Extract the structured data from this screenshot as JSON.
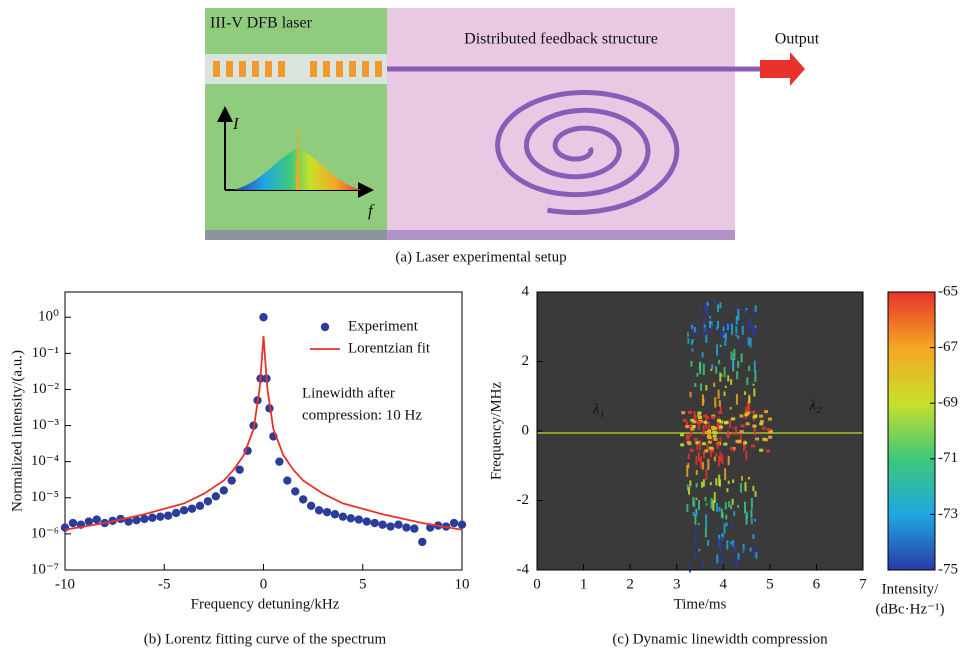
{
  "figure": {
    "panel_a": {
      "laser_label": "III-V DFB laser",
      "structure_label": "Distributed feedback structure",
      "output_label": "Output",
      "inset_y_label": "I",
      "inset_x_label": "f",
      "caption": "(a) Laser experimental setup"
    }
  },
  "chart_data": [
    {
      "type": "scatter",
      "caption": "(b) Lorentz fitting curve of the spectrum",
      "xlabel": "Frequency detuning/kHz",
      "ylabel": "Normalized intensity/(a.u.)",
      "xlim": [
        -10,
        10
      ],
      "xticks": [
        -10,
        -5,
        0,
        5,
        10
      ],
      "ylim": [
        1e-07,
        5
      ],
      "log_y": true,
      "yticks": [
        {
          "value": 1e-07,
          "label": "10⁻⁷"
        },
        {
          "value": 1e-06,
          "label": "10⁻⁶"
        },
        {
          "value": 1e-05,
          "label": "10⁻⁵"
        },
        {
          "value": 0.0001,
          "label": "10⁻⁴"
        },
        {
          "value": 0.001,
          "label": "10⁻³"
        },
        {
          "value": 0.01,
          "label": "10⁻²"
        },
        {
          "value": 0.1,
          "label": "10⁻¹"
        },
        {
          "value": 1,
          "label": "10⁰"
        }
      ],
      "legend": "upper right",
      "annotations": [
        "Linewidth after",
        "compression: 10 Hz"
      ],
      "series": [
        {
          "name": "Experiment",
          "type": "scatter",
          "color": "#2b3d9b",
          "x": [
            -10,
            -9.6,
            -9.2,
            -8.8,
            -8.4,
            -8,
            -7.6,
            -7.2,
            -6.8,
            -6.4,
            -6,
            -5.6,
            -5.2,
            -4.8,
            -4.4,
            -4,
            -3.6,
            -3.2,
            -2.8,
            -2.4,
            -2,
            -1.6,
            -1.2,
            -0.8,
            -0.5,
            -0.3,
            -0.15,
            0,
            0.15,
            0.3,
            0.5,
            0.8,
            1.2,
            1.6,
            2,
            2.4,
            2.8,
            3.2,
            3.6,
            4,
            4.4,
            4.8,
            5.2,
            5.6,
            6,
            6.4,
            6.8,
            7.2,
            7.6,
            8,
            8.4,
            8.8,
            9.2,
            9.6,
            10
          ],
          "values": [
            1.5e-06,
            2e-06,
            1.8e-06,
            2.2e-06,
            2.5e-06,
            2e-06,
            2.3e-06,
            2.6e-06,
            2.2e-06,
            2.4e-06,
            2.6e-06,
            2.8e-06,
            3e-06,
            3.2e-06,
            3.8e-06,
            4.5e-06,
            5e-06,
            6e-06,
            8e-06,
            1.1e-05,
            1.6e-05,
            3e-05,
            6e-05,
            0.0002,
            0.001,
            0.005,
            0.02,
            1,
            0.02,
            0.003,
            0.0005,
            0.0001,
            3e-05,
            1.5e-05,
            9e-06,
            6e-06,
            4.5e-06,
            4e-06,
            3.5e-06,
            3e-06,
            2.7e-06,
            2.5e-06,
            2.2e-06,
            2e-06,
            1.8e-06,
            1.6e-06,
            1.8e-06,
            1.5e-06,
            1.4e-06,
            6e-07,
            1.5e-06,
            1.7e-06,
            1.6e-06,
            2e-06,
            1.8e-06
          ]
        },
        {
          "name": "Lorentzian fit",
          "type": "line",
          "color": "#e8332c",
          "x": [
            -10,
            -8,
            -6,
            -4,
            -3,
            -2,
            -1.5,
            -1,
            -0.5,
            -0.2,
            -0.1,
            0,
            0.1,
            0.2,
            0.5,
            1,
            1.5,
            2,
            3,
            4,
            6,
            8,
            10
          ],
          "values": [
            1.3e-06,
            2e-06,
            3.5e-06,
            7e-06,
            1.3e-05,
            3e-05,
            6e-05,
            0.00015,
            0.0008,
            0.01,
            0.05,
            0.3,
            0.05,
            0.01,
            0.0008,
            0.00015,
            6e-05,
            3e-05,
            1.3e-05,
            7e-06,
            3.5e-06,
            2e-06,
            1.3e-06
          ]
        }
      ]
    },
    {
      "type": "heatmap",
      "caption": "(c) Dynamic linewidth compression",
      "xlabel": "Time/ms",
      "ylabel": "Frequency/MHz",
      "xlim": [
        0,
        7
      ],
      "xticks": [
        0,
        1,
        2,
        3,
        4,
        5,
        6,
        7
      ],
      "ylim": [
        -4,
        4
      ],
      "yticks": [
        -4,
        -2,
        0,
        2,
        4
      ],
      "annotations": [
        "λ₁",
        "λ₂"
      ],
      "colormap": [
        "#2b3aa8",
        "#1fa7e0",
        "#3ec87a",
        "#c8e02a",
        "#f5a623",
        "#e8332c"
      ],
      "colorbar": {
        "lim": [
          -75,
          -65
        ],
        "ticks": [
          -75,
          -73,
          -71,
          -69,
          -67,
          -65
        ],
        "label": [
          "Intensity/",
          "(dBc·Hz⁻¹)"
        ]
      }
    }
  ]
}
